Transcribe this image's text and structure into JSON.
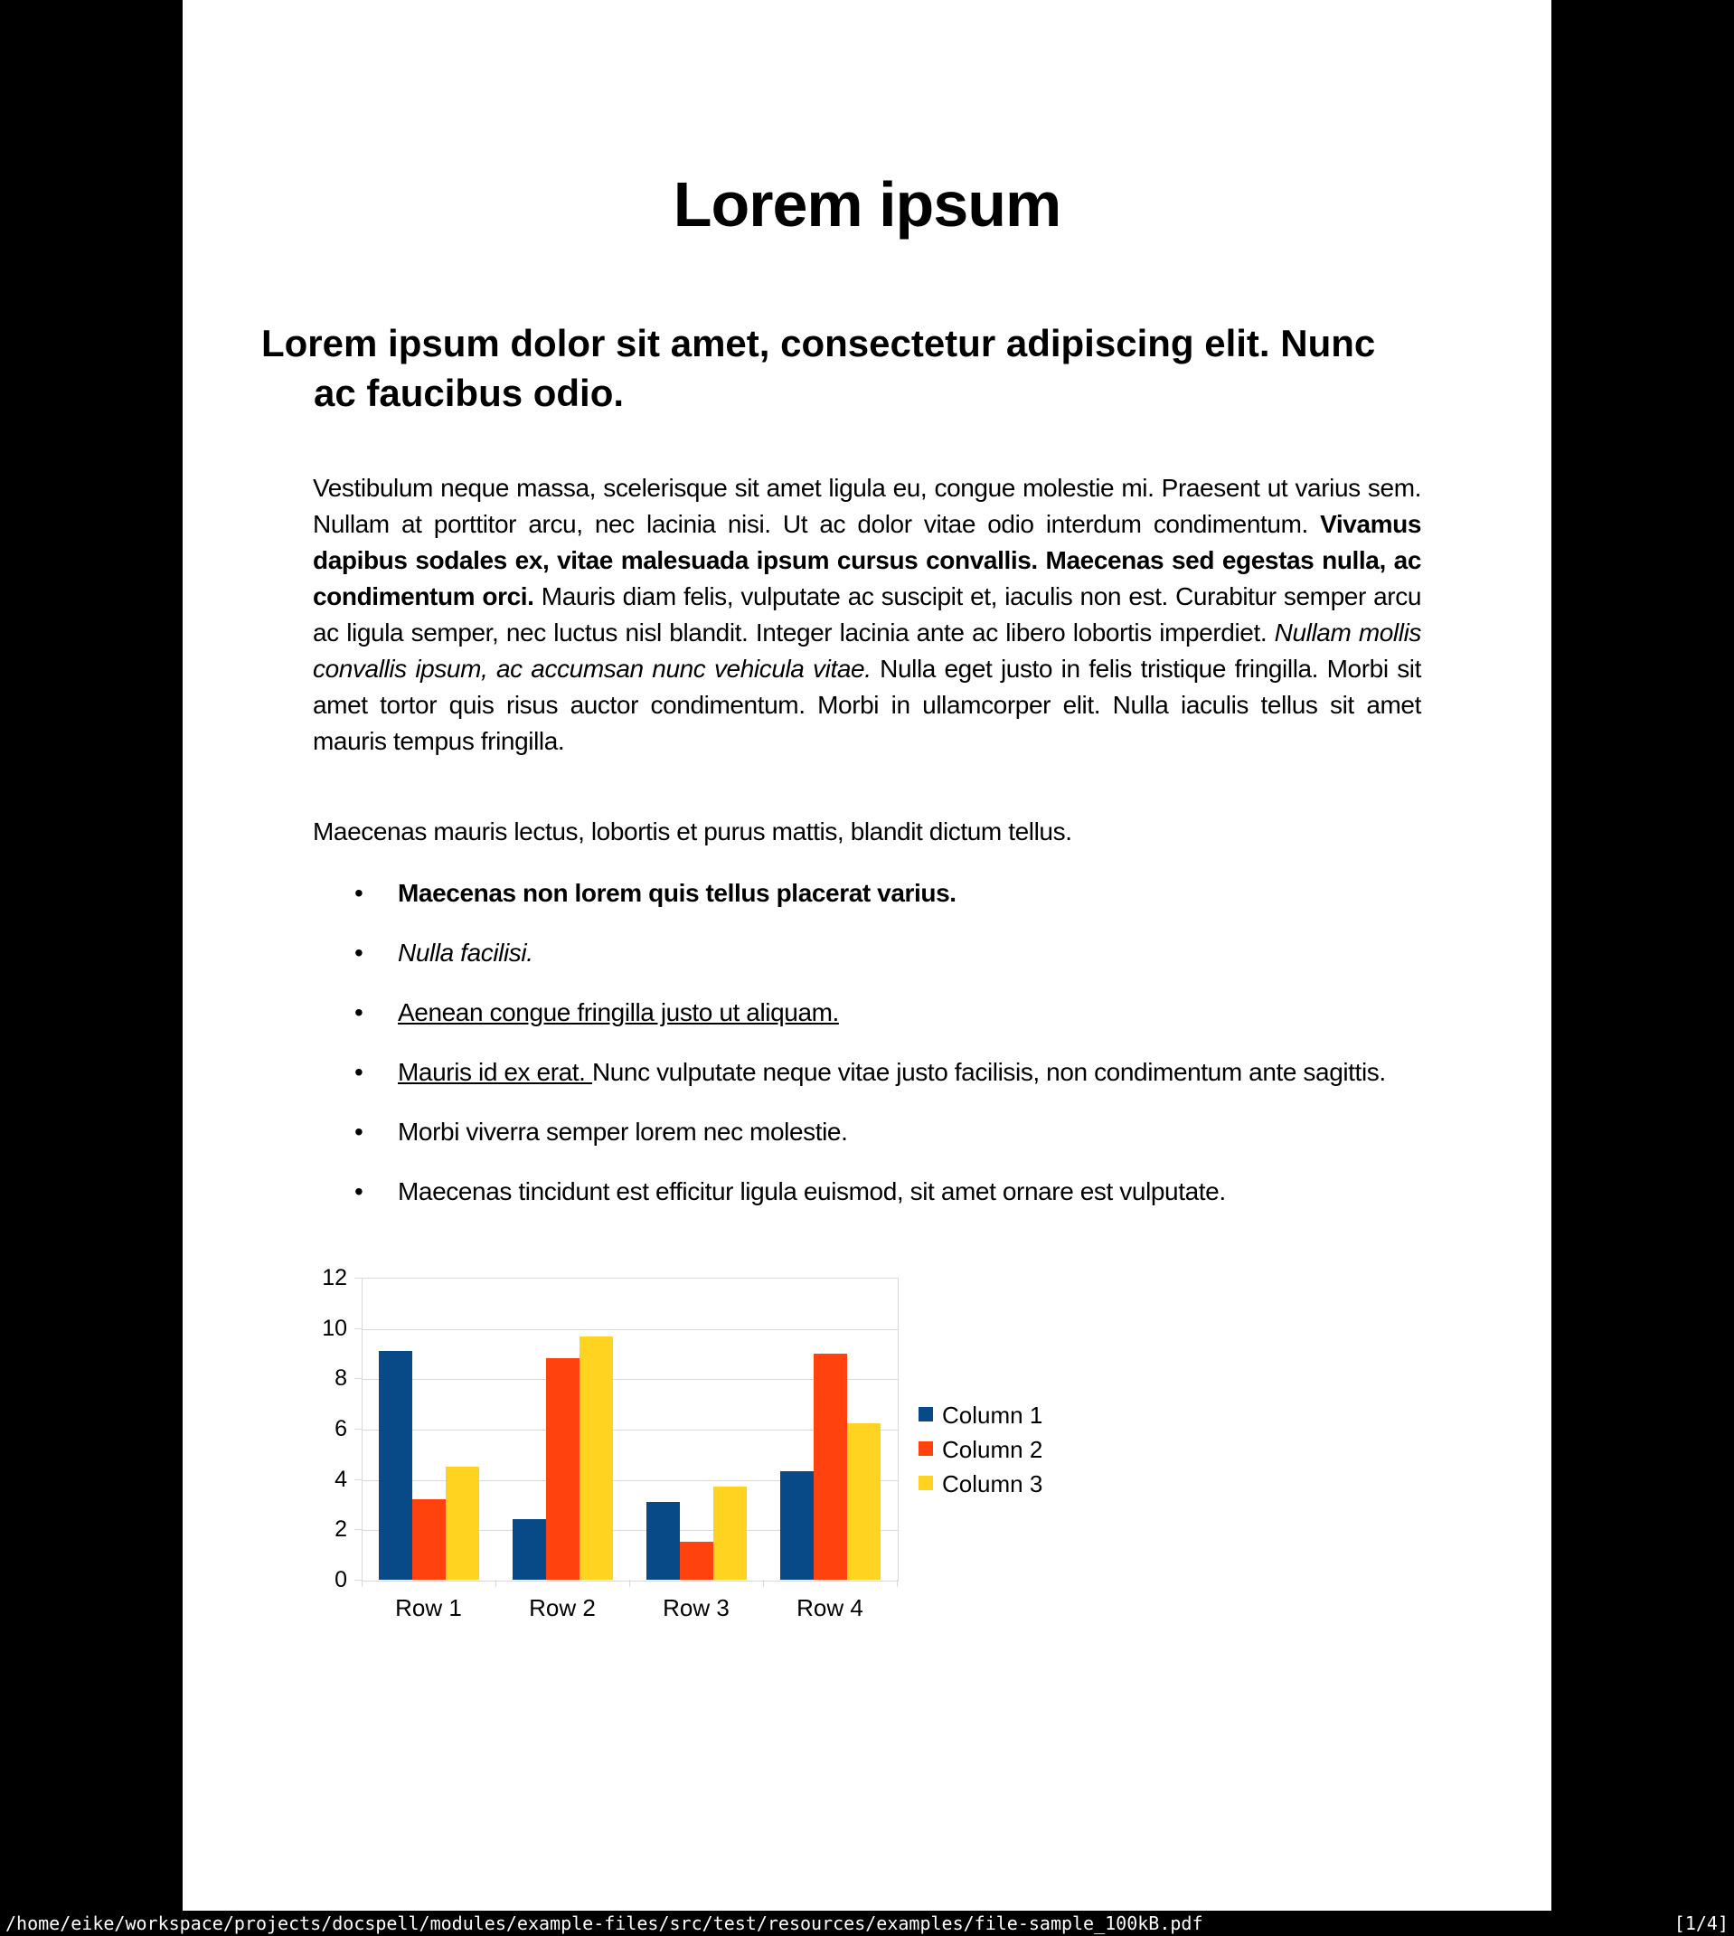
{
  "viewer": {
    "background_color": "#000000",
    "statusbar": {
      "file_path": "/home/eike/workspace/projects/docspell/modules/example-files/src/test/resources/examples/file-sample_100kB.pdf",
      "page_indicator": "[1/4]"
    }
  },
  "document": {
    "title": "Lorem ipsum",
    "heading": "Lorem ipsum dolor sit amet, consectetur adipiscing elit. Nunc ac faucibus odio.",
    "intro_runs": [
      {
        "style": "normal",
        "text": "Vestibulum neque massa, scelerisque sit amet ligula eu, congue molestie mi. Praesent ut varius sem. Nullam at porttitor arcu, nec lacinia nisi. Ut ac dolor vitae odio interdum condimentum. "
      },
      {
        "style": "bold",
        "text": "Vivamus dapibus sodales ex, vitae malesuada ipsum cursus convallis. Maecenas sed egestas nulla, ac condimentum orci. "
      },
      {
        "style": "normal",
        "text": "Mauris diam felis, vulputate ac suscipit et, iaculis non est. Curabitur semper arcu ac ligula semper, nec luctus nisl blandit. Integer lacinia ante ac libero lobortis imperdiet. "
      },
      {
        "style": "italic",
        "text": "Nullam mollis convallis ipsum, ac accumsan nunc vehicula vitae. "
      },
      {
        "style": "normal",
        "text": "Nulla eget justo in felis tristique fringilla. Morbi sit amet tortor quis risus auctor condimentum. Morbi in ullamcorper elit. Nulla iaculis tellus sit amet mauris tempus fringilla."
      }
    ],
    "sub_paragraph": "Maecenas mauris lectus, lobortis et purus mattis, blandit dictum tellus.",
    "bullet_marker": "•",
    "bullets": [
      {
        "runs": [
          {
            "style": "bold",
            "text": "Maecenas non lorem quis tellus placerat varius."
          }
        ]
      },
      {
        "runs": [
          {
            "style": "italic",
            "text": "Nulla facilisi."
          }
        ]
      },
      {
        "runs": [
          {
            "style": "underline",
            "text": "Aenean congue fringilla justo ut aliquam. "
          }
        ]
      },
      {
        "runs": [
          {
            "style": "underline",
            "text": "Mauris id ex erat. "
          },
          {
            "style": "normal",
            "text": "Nunc vulputate neque vitae justo facilisis, non condimentum ante sagittis."
          }
        ]
      },
      {
        "runs": [
          {
            "style": "normal",
            "text": "Morbi viverra semper lorem nec molestie."
          }
        ]
      },
      {
        "runs": [
          {
            "style": "normal",
            "text": "Maecenas tincidunt est efficitur ligula euismod, sit amet ornare est vulputate."
          }
        ]
      }
    ]
  },
  "chart_data": {
    "type": "bar",
    "title": "",
    "xlabel": "",
    "ylabel": "",
    "categories": [
      "Row 1",
      "Row 2",
      "Row 3",
      "Row 4"
    ],
    "series": [
      {
        "name": "Column 1",
        "color": "#084A87",
        "values": [
          9.1,
          2.4,
          3.1,
          4.3
        ]
      },
      {
        "name": "Column 2",
        "color": "#FF420E",
        "values": [
          3.2,
          8.8,
          1.5,
          9.0
        ]
      },
      {
        "name": "Column 3",
        "color": "#FFD320",
        "values": [
          4.5,
          9.65,
          3.7,
          6.2
        ]
      }
    ],
    "ylim": [
      0,
      12
    ],
    "ytick_step": 2,
    "grid": true,
    "legend_position": "right",
    "grid_color": "#d9d9d9",
    "tick_label_color": "#000000"
  }
}
